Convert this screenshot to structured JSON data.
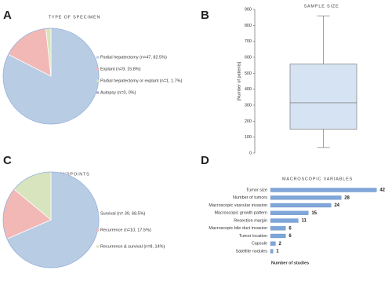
{
  "chart_data": [
    {
      "type": "pie",
      "panel": "A",
      "title": "TYPE OF SPECIMEN",
      "categories": [
        "Partial hepatectomy (n=47, 82.5%)",
        "Explant (n=9, 15.8%)",
        "Partial hepatectomy or explant (n=1, 1.7%)",
        "Autopsy (n=0, 0%)"
      ],
      "values": [
        82.5,
        15.8,
        1.7,
        0
      ],
      "colors": [
        "#b8cce4",
        "#f2b8b6",
        "#d7e4bd",
        "#aaa3d3"
      ]
    },
    {
      "type": "box",
      "panel": "B",
      "title": "SAMPLE SIZE",
      "ylabel": "[Number of patients]",
      "box": {
        "min": 35,
        "q1": 150,
        "median": 315,
        "q3": 558,
        "max": 860
      },
      "color": "#d6e3f3",
      "ylim": [
        0,
        900
      ],
      "yticks": [
        0,
        100,
        200,
        300,
        400,
        500,
        600,
        700,
        800,
        900
      ]
    },
    {
      "type": "pie",
      "panel": "C",
      "title": "ENDPOINTS",
      "categories": [
        "Survival (n= 39, 68.5%)",
        "Recurrence (n=10, 17.5%)",
        "Recurrence & survival (n=8, 14%)"
      ],
      "values": [
        68.5,
        17.5,
        14
      ],
      "colors": [
        "#b8cce4",
        "#f2b8b6",
        "#d7e4bd"
      ]
    },
    {
      "type": "bar",
      "horizontal": true,
      "panel": "D",
      "title": "MACROSCOPIC VARIABLES",
      "xlabel": "Number of studies",
      "categories": [
        "Tumor size",
        "Number of tumors",
        "Macroscopic vascular invasion",
        "Macroscopic growth pattern",
        "Resection margin",
        "Macroscopic bile duct invasion",
        "Tumor location",
        "Capsule",
        "Satellite nodules"
      ],
      "values": [
        42,
        28,
        24,
        15,
        11,
        6,
        6,
        2,
        1
      ],
      "color": "#7fa6d9",
      "xlim": [
        0,
        45
      ]
    }
  ]
}
